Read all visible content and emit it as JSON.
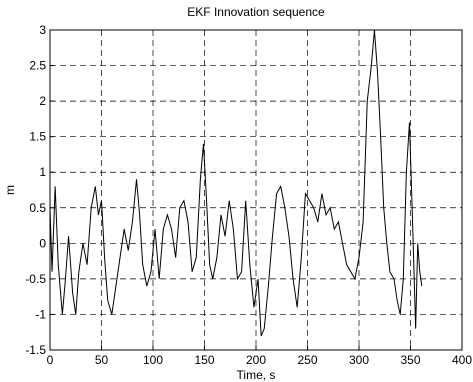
{
  "chart_data": {
    "type": "line",
    "title": "EKF Innovation sequence",
    "xlabel": "Time, s",
    "ylabel": "m",
    "x": [
      0,
      2,
      5,
      8,
      12,
      15,
      18,
      22,
      25,
      28,
      32,
      36,
      40,
      44,
      47,
      50,
      53,
      56,
      60,
      64,
      68,
      72,
      76,
      80,
      84,
      87,
      90,
      94,
      98,
      102,
      106,
      110,
      114,
      118,
      122,
      126,
      130,
      134,
      138,
      142,
      146,
      149,
      152,
      155,
      158,
      162,
      166,
      170,
      174,
      178,
      182,
      186,
      190,
      194,
      198,
      202,
      205,
      208,
      212,
      216,
      220,
      224,
      228,
      232,
      236,
      240,
      244,
      248,
      252,
      256,
      260,
      264,
      268,
      272,
      276,
      280,
      284,
      288,
      292,
      296,
      300,
      304,
      308,
      312,
      315,
      318,
      321,
      324,
      327,
      330,
      334,
      337,
      340,
      343,
      346,
      349,
      352,
      355,
      357,
      359,
      361
    ],
    "values": [
      0.5,
      -0.4,
      0.8,
      -0.3,
      -1.0,
      -0.5,
      0.1,
      -0.7,
      -1.0,
      -0.4,
      0.0,
      -0.3,
      0.5,
      0.8,
      0.4,
      0.6,
      -0.2,
      -0.8,
      -1.0,
      -0.6,
      -0.2,
      0.2,
      -0.1,
      0.3,
      0.9,
      0.4,
      -0.3,
      -0.6,
      -0.4,
      0.2,
      -0.5,
      0.2,
      0.4,
      0.2,
      -0.2,
      0.5,
      0.6,
      0.3,
      -0.4,
      -0.2,
      0.9,
      1.4,
      0.6,
      -0.3,
      -0.5,
      -0.2,
      0.4,
      0.1,
      0.6,
      0.2,
      -0.5,
      -0.4,
      0.6,
      -0.3,
      -0.9,
      -0.5,
      -1.3,
      -1.2,
      -0.6,
      0.1,
      0.7,
      0.8,
      0.5,
      0.1,
      -0.5,
      -0.9,
      -0.2,
      0.7,
      0.6,
      0.5,
      0.3,
      0.7,
      0.4,
      0.5,
      0.2,
      0.3,
      0.0,
      -0.3,
      -0.4,
      -0.5,
      -0.2,
      0.3,
      2.0,
      2.5,
      3.0,
      2.4,
      1.5,
      0.5,
      0.0,
      -0.4,
      -0.5,
      -0.8,
      -1.0,
      -0.5,
      1.0,
      1.7,
      0.3,
      -1.2,
      0.0,
      -0.4,
      -0.6
    ],
    "color": "#000000",
    "xlim": [
      0,
      400
    ],
    "xticks": [
      0,
      50,
      100,
      150,
      200,
      250,
      300,
      350,
      400
    ],
    "ylim": [
      -1.5,
      3
    ],
    "yticks": [
      -1.5,
      -1,
      -0.5,
      0,
      0.5,
      1,
      1.5,
      2,
      2.5,
      3
    ],
    "grid": true
  }
}
